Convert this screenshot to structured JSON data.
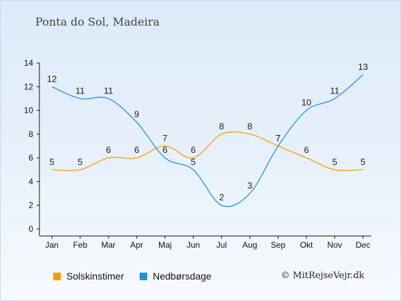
{
  "header": {
    "title": "Ponta do Sol, Madeira"
  },
  "footer": {
    "copyright": "© MitRejseVejr.dk"
  },
  "chart_data": {
    "type": "line",
    "categories": [
      "Jan",
      "Feb",
      "Mar",
      "Apr",
      "Maj",
      "Jun",
      "Jul",
      "Aug",
      "Sep",
      "Okt",
      "Nov",
      "Dec"
    ],
    "ylim": [
      0,
      14
    ],
    "yticks": [
      0,
      2,
      4,
      6,
      8,
      10,
      12,
      14
    ],
    "grid": false,
    "legend_position": "bottom-left",
    "series": [
      {
        "name": "Solskinstimer",
        "color": "#f5a000",
        "values": [
          5,
          5,
          6,
          6,
          7,
          6,
          8,
          8,
          7,
          6,
          5,
          5
        ]
      },
      {
        "name": "Nedbørsdage",
        "color": "#2290e6",
        "values": [
          12,
          11,
          11,
          9,
          6,
          5,
          2,
          3,
          7,
          10,
          11,
          13
        ]
      }
    ]
  }
}
